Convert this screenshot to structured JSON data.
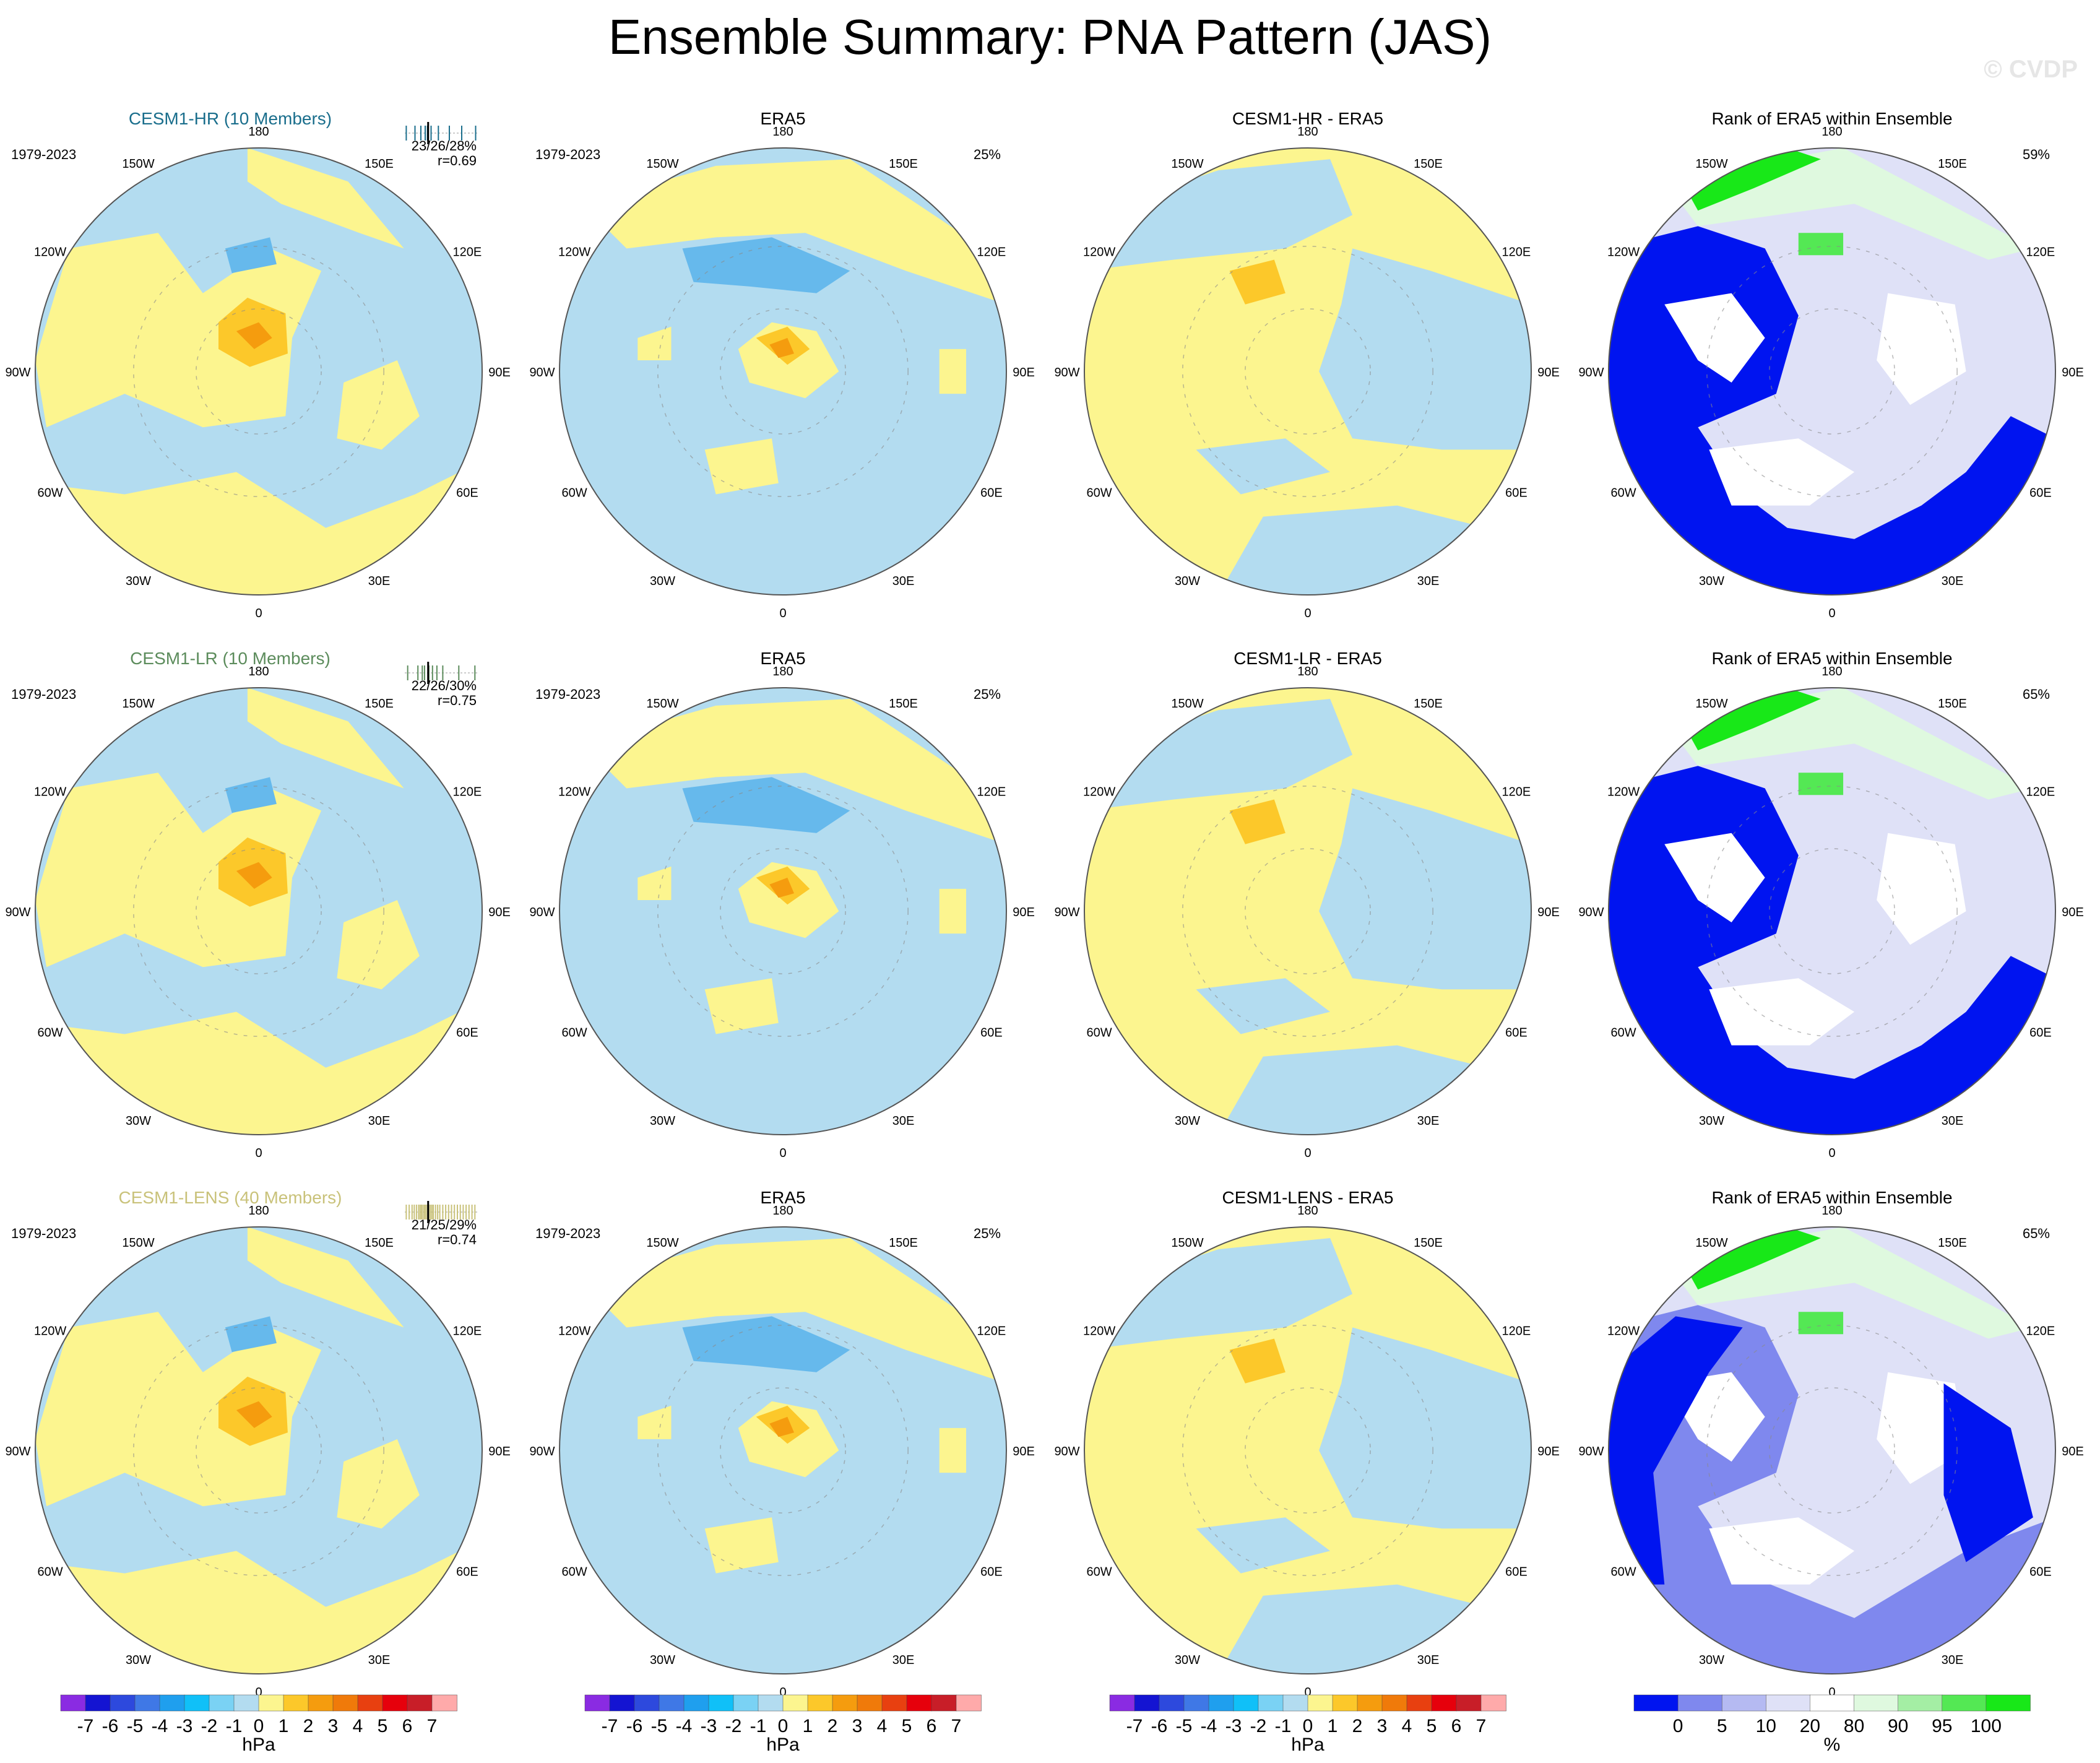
{
  "title": "Ensemble Summary: PNA Pattern (JAS)",
  "watermark": "© CVDP",
  "colors": {
    "pos1": "#fcf58f",
    "pos2": "#fcc82a",
    "pos3": "#f59c0e",
    "neg1": "#b3dcf0",
    "neg2": "#66b9ec",
    "rank_blue": "#0014f0",
    "rank_lav": "#dfe1f7",
    "rank_mid": "#7f88ee",
    "rank_green_lt": "#dff9df",
    "rank_green": "#54e854",
    "rank_green_dk": "#18e818",
    "title_hr": "#1a6e8c",
    "title_lr": "#5c8c5c",
    "title_lens": "#c9c27a"
  },
  "lon_labels": [
    "180",
    "150E",
    "120E",
    "90E",
    "60E",
    "30E",
    "0",
    "30W",
    "60W",
    "90W",
    "120W",
    "150W"
  ],
  "rows": [
    {
      "model": "CESM1-HR (10 Members)",
      "title_color": "#1a6e8c",
      "period": "1979-2023",
      "stats": "23/26/28%",
      "corr": "r=0.69",
      "obs_title": "ERA5",
      "obs_period": "1979-2023",
      "obs_pct": "25%",
      "diff_title": "CESM1-HR - ERA5",
      "rank_title": "Rank of ERA5 within Ensemble",
      "rank_pct": "59%",
      "bar_ticks": [
        0.02,
        0.14,
        0.22,
        0.28,
        0.31,
        0.36,
        0.46,
        0.61,
        0.78,
        0.97
      ]
    },
    {
      "model": "CESM1-LR (10 Members)",
      "title_color": "#5c8c5c",
      "period": "1979-2023",
      "stats": "22/26/30%",
      "corr": "r=0.75",
      "obs_title": "ERA5",
      "obs_period": "1979-2023",
      "obs_pct": "25%",
      "diff_title": "CESM1-LR - ERA5",
      "rank_title": "Rank of ERA5 within Ensemble",
      "rank_pct": "65%",
      "bar_ticks": [
        0.04,
        0.18,
        0.24,
        0.27,
        0.33,
        0.38,
        0.44,
        0.52,
        0.74,
        0.96
      ]
    },
    {
      "model": "CESM1-LENS (40 Members)",
      "title_color": "#c9c27a",
      "period": "1979-2023",
      "stats": "21/25/29%",
      "corr": "r=0.74",
      "obs_title": "ERA5",
      "obs_period": "1979-2023",
      "obs_pct": "25%",
      "diff_title": "CESM1-LENS - ERA5",
      "rank_title": "Rank of ERA5 within Ensemble",
      "rank_pct": "65%",
      "bar_ticks": [
        0.02,
        0.06,
        0.1,
        0.13,
        0.16,
        0.19,
        0.21,
        0.23,
        0.25,
        0.27,
        0.29,
        0.31,
        0.33,
        0.35,
        0.37,
        0.39,
        0.42,
        0.45,
        0.48,
        0.52,
        0.56,
        0.6,
        0.64,
        0.68,
        0.72,
        0.76,
        0.8,
        0.84,
        0.88,
        0.92,
        0.96
      ]
    }
  ],
  "colorbar_hpa": {
    "label": "hPa",
    "ticks": [
      "-7",
      "-6",
      "-5",
      "-4",
      "-3",
      "-2",
      "-1",
      "0",
      "1",
      "2",
      "3",
      "4",
      "5",
      "6",
      "7"
    ],
    "colors": [
      "#8a2be2",
      "#1414d2",
      "#2d49dd",
      "#3f78e6",
      "#1f9fee",
      "#10c0f8",
      "#7ad2f4",
      "#b3dcf0",
      "#fcf58f",
      "#fcc82a",
      "#f59c0e",
      "#f07a0a",
      "#e84010",
      "#e6000c",
      "#c81e28",
      "#ffaaaa"
    ]
  },
  "colorbar_rank": {
    "label": "%",
    "ticks": [
      "0",
      "5",
      "10",
      "20",
      "80",
      "90",
      "95",
      "100"
    ],
    "colors": [
      "#0014f0",
      "#7f88ee",
      "#b5baf2",
      "#dfe1f7",
      "#ffffff",
      "#dff9df",
      "#a4eea4",
      "#54e854",
      "#18e818"
    ]
  },
  "chart_data": {
    "type": "heatmap",
    "title": "Ensemble Summary: PNA Pattern (JAS)",
    "panels": [
      {
        "row": "CESM1-HR (10 Members)",
        "columns": [
          "CESM1-HR (10 Members)",
          "ERA5",
          "CESM1-HR - ERA5",
          "Rank of ERA5 within Ensemble"
        ],
        "stats": "23/26/28%",
        "r": 0.69,
        "obs_pct": "25%",
        "rank_pct": "59%"
      },
      {
        "row": "CESM1-LR (10 Members)",
        "columns": [
          "CESM1-LR (10 Members)",
          "ERA5",
          "CESM1-LR - ERA5",
          "Rank of ERA5 within Ensemble"
        ],
        "stats": "22/26/30%",
        "r": 0.75,
        "obs_pct": "25%",
        "rank_pct": "65%"
      },
      {
        "row": "CESM1-LENS (40 Members)",
        "columns": [
          "CESM1-LENS (40 Members)",
          "ERA5",
          "CESM1-LENS - ERA5",
          "Rank of ERA5 within Ensemble"
        ],
        "stats": "21/25/29%",
        "r": 0.74,
        "obs_pct": "25%",
        "rank_pct": "65%"
      }
    ],
    "field_units": "hPa",
    "field_levels": [
      -7,
      -6,
      -5,
      -4,
      -3,
      -2,
      -1,
      0,
      1,
      2,
      3,
      4,
      5,
      6,
      7
    ],
    "rank_units": "%",
    "rank_levels": [
      0,
      5,
      10,
      20,
      80,
      90,
      95,
      100
    ],
    "projection": "polar stereographic (Northern Hemisphere)"
  }
}
